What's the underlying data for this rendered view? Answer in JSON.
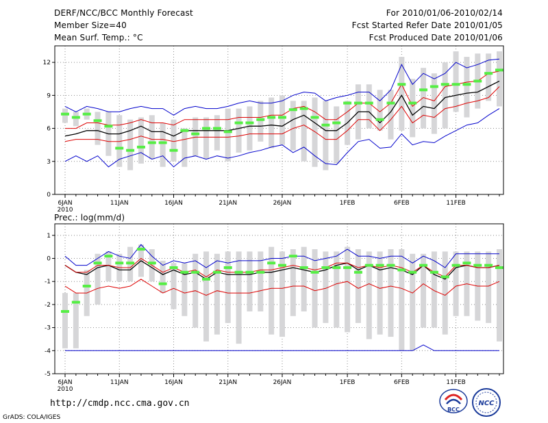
{
  "header": {
    "title": "DERF/NCC/BCC Monthly Forecast",
    "member": "Member Size=40",
    "variable": "Mean Surf. Temp.: °C",
    "period": "For 2010/01/06-2010/02/14",
    "started": "Fcst Started Refer Date 2010/01/05",
    "produced": "Fcst Produced Date 2010/01/06"
  },
  "footer": {
    "url": "http://cmdp.ncc.cma.gov.cn",
    "grads": "GrADS: COLA/IGES",
    "logo_left_text": "BCC",
    "logo_right_text": "NCC"
  },
  "colors": {
    "box": "#d6d6d8",
    "median": "#55ee44",
    "mean": "#000000",
    "std": "#dd0000",
    "range": "#0000cc",
    "grid": "#888888"
  },
  "chart_data": [
    {
      "type": "line",
      "title": "Mean Surf. Temp.: °C",
      "ylim": [
        0,
        13.5
      ],
      "yticks": [
        0,
        3,
        6,
        9,
        12
      ],
      "x_ticks": [
        {
          "i": 0,
          "label": "6JAN",
          "sub": "2010"
        },
        {
          "i": 5,
          "label": "11JAN"
        },
        {
          "i": 10,
          "label": "16JAN"
        },
        {
          "i": 15,
          "label": "21JAN"
        },
        {
          "i": 20,
          "label": "26JAN"
        },
        {
          "i": 26,
          "label": "1FEB"
        },
        {
          "i": 31,
          "label": "6FEB"
        },
        {
          "i": 36,
          "label": "11FEB"
        }
      ],
      "box_low": [
        6.5,
        6.2,
        6.8,
        4.5,
        3.5,
        2.5,
        2.2,
        2.8,
        3.2,
        2.5,
        3.0,
        2.5,
        3.5,
        3.2,
        4.0,
        3.0,
        3.8,
        4.0,
        4.8,
        4.2,
        4.5,
        4.0,
        3.0,
        2.5,
        2.2,
        2.8,
        4.5,
        5.0,
        6.0,
        5.8,
        5.0,
        5.8,
        5.2,
        6.0,
        5.5,
        6.0,
        7.5,
        7.0,
        7.8,
        8.5,
        8.0
      ],
      "box_high": [
        7.8,
        7.5,
        7.8,
        7.5,
        7.5,
        7.2,
        6.8,
        7.0,
        7.2,
        6.5,
        6.8,
        6.0,
        7.0,
        7.0,
        7.2,
        7.8,
        7.8,
        8.0,
        8.5,
        8.8,
        9.0,
        8.5,
        8.5,
        8.8,
        8.5,
        8.0,
        8.5,
        10.0,
        10.0,
        9.5,
        9.5,
        12.5,
        10.5,
        11.5,
        11.0,
        12.0,
        13.0,
        12.5,
        12.8,
        12.8,
        13.0
      ],
      "median": [
        7.3,
        7.0,
        7.3,
        6.7,
        6.2,
        4.2,
        4.0,
        4.3,
        4.7,
        4.7,
        4.0,
        5.8,
        5.5,
        6.0,
        6.0,
        5.7,
        6.5,
        6.5,
        6.8,
        7.0,
        7.0,
        7.7,
        7.8,
        7.0,
        6.3,
        6.5,
        8.3,
        8.3,
        8.3,
        6.8,
        8.3,
        10.0,
        8.3,
        9.5,
        9.8,
        10.0,
        10.0,
        10.0,
        10.3,
        11.0,
        11.3
      ],
      "series": [
        {
          "name": "mean",
          "values": [
            5.3,
            5.5,
            5.8,
            5.8,
            5.5,
            5.5,
            5.8,
            6.2,
            5.7,
            5.7,
            5.3,
            5.8,
            5.8,
            5.8,
            5.8,
            5.8,
            6.0,
            6.2,
            6.2,
            6.3,
            6.2,
            6.8,
            7.2,
            6.5,
            5.8,
            5.8,
            6.5,
            7.5,
            7.5,
            6.5,
            7.5,
            9.0,
            7.2,
            8.0,
            7.8,
            8.8,
            9.0,
            9.2,
            9.3,
            9.8,
            10.3
          ]
        },
        {
          "name": "std_upper",
          "values": [
            6.0,
            6.0,
            6.5,
            6.5,
            6.3,
            6.3,
            6.5,
            6.8,
            6.5,
            6.5,
            6.3,
            6.8,
            6.8,
            6.8,
            6.8,
            6.8,
            7.0,
            7.0,
            7.0,
            7.2,
            7.2,
            7.8,
            8.0,
            7.5,
            6.8,
            6.8,
            7.5,
            8.3,
            8.3,
            7.5,
            8.3,
            10.0,
            8.0,
            8.8,
            8.5,
            9.8,
            10.0,
            10.2,
            10.3,
            11.0,
            11.2
          ]
        },
        {
          "name": "std_lower",
          "values": [
            4.8,
            5.0,
            5.0,
            5.0,
            4.8,
            4.8,
            5.0,
            5.3,
            5.0,
            5.0,
            4.8,
            5.0,
            5.2,
            5.2,
            5.2,
            5.2,
            5.3,
            5.5,
            5.5,
            5.5,
            5.5,
            6.0,
            6.3,
            5.7,
            5.0,
            5.0,
            5.8,
            6.8,
            6.8,
            5.8,
            6.8,
            8.0,
            6.5,
            7.2,
            7.0,
            7.8,
            8.0,
            8.3,
            8.5,
            8.8,
            9.8
          ]
        },
        {
          "name": "max",
          "values": [
            8.0,
            7.5,
            8.0,
            7.8,
            7.5,
            7.5,
            7.8,
            8.0,
            7.8,
            7.8,
            7.2,
            7.8,
            8.0,
            7.8,
            7.8,
            8.0,
            8.3,
            8.5,
            8.3,
            8.3,
            8.5,
            9.0,
            9.3,
            9.2,
            8.5,
            8.8,
            9.0,
            9.3,
            9.3,
            8.5,
            9.5,
            11.8,
            10.0,
            11.0,
            10.5,
            11.0,
            12.0,
            11.5,
            11.8,
            12.2,
            12.3
          ]
        },
        {
          "name": "min",
          "values": [
            3.0,
            3.5,
            3.0,
            3.5,
            2.5,
            3.2,
            3.5,
            3.8,
            3.2,
            3.5,
            2.5,
            3.3,
            3.5,
            3.2,
            3.5,
            3.3,
            3.5,
            3.8,
            4.0,
            4.3,
            4.5,
            3.8,
            4.3,
            3.5,
            2.8,
            2.7,
            3.8,
            4.8,
            5.0,
            4.2,
            4.3,
            5.5,
            4.5,
            4.8,
            4.7,
            5.3,
            5.8,
            6.3,
            6.5,
            7.2,
            7.8
          ]
        }
      ]
    },
    {
      "type": "line",
      "title": "Prec.: log(mm/d)",
      "ylim": [
        -5,
        1.5
      ],
      "yticks": [
        1,
        0,
        -1,
        -2,
        -3,
        -4,
        -5
      ],
      "x_ticks": [
        {
          "i": 0,
          "label": "6JAN",
          "sub": "2010"
        },
        {
          "i": 5,
          "label": "11JAN"
        },
        {
          "i": 10,
          "label": "16JAN"
        },
        {
          "i": 15,
          "label": "21JAN"
        },
        {
          "i": 20,
          "label": "26JAN"
        },
        {
          "i": 26,
          "label": "1FEB"
        },
        {
          "i": 31,
          "label": "6FEB"
        },
        {
          "i": 36,
          "label": "11FEB"
        }
      ],
      "box_low": [
        -3.9,
        -3.9,
        -2.5,
        -2.0,
        -1.0,
        -1.0,
        -1.0,
        -0.8,
        -1.0,
        -1.5,
        -2.2,
        -2.5,
        -3.0,
        -3.6,
        -3.3,
        -2.8,
        -3.7,
        -2.3,
        -2.3,
        -3.3,
        -3.4,
        -2.5,
        -2.3,
        -3.0,
        -2.8,
        -3.0,
        -3.2,
        -2.8,
        -3.5,
        -3.3,
        -3.4,
        -4.0,
        -4.0,
        -3.0,
        -3.0,
        -3.3,
        -2.5,
        -2.5,
        -2.7,
        -2.8,
        -3.6
      ],
      "box_high": [
        -1.5,
        -1.5,
        -0.5,
        0.2,
        0.3,
        0.2,
        0.5,
        0.6,
        0.4,
        -0.1,
        -0.2,
        -0.2,
        0.2,
        0.3,
        0.2,
        0.3,
        0.3,
        0.3,
        0.3,
        0.5,
        0.3,
        0.4,
        0.5,
        0.4,
        0.3,
        0.3,
        0.5,
        0.4,
        0.3,
        0.3,
        0.4,
        0.4,
        0.2,
        0.2,
        0.3,
        0.3,
        0.3,
        0.3,
        0.3,
        0.3,
        0.4
      ],
      "median": [
        -2.3,
        -1.9,
        -1.2,
        -0.2,
        0.1,
        -0.2,
        -0.2,
        0.4,
        -0.2,
        -1.1,
        -0.4,
        -0.6,
        -0.6,
        -0.9,
        -0.6,
        -0.4,
        -0.6,
        -0.6,
        -0.6,
        -0.2,
        -0.3,
        0.1,
        -0.4,
        -0.6,
        -0.4,
        -0.4,
        -0.4,
        -0.6,
        -0.3,
        -0.3,
        -0.3,
        -0.5,
        -0.6,
        -0.3,
        -0.6,
        -0.8,
        -0.3,
        -0.2,
        -0.3,
        -0.3,
        -0.4
      ],
      "series": [
        {
          "name": "mean",
          "values": [
            -0.3,
            -0.6,
            -0.7,
            -0.4,
            -0.3,
            -0.5,
            -0.5,
            -0.1,
            -0.4,
            -0.7,
            -0.5,
            -0.7,
            -0.6,
            -0.9,
            -0.6,
            -0.7,
            -0.7,
            -0.7,
            -0.6,
            -0.6,
            -0.5,
            -0.4,
            -0.5,
            -0.6,
            -0.5,
            -0.3,
            -0.2,
            -0.5,
            -0.3,
            -0.5,
            -0.4,
            -0.5,
            -0.7,
            -0.3,
            -0.7,
            -0.9,
            -0.4,
            -0.3,
            -0.4,
            -0.4,
            -0.3
          ]
        },
        {
          "name": "std_upper",
          "values": [
            -0.3,
            -0.6,
            -0.6,
            -0.3,
            -0.3,
            -0.4,
            -0.4,
            0.0,
            -0.3,
            -0.6,
            -0.4,
            -0.6,
            -0.5,
            -0.8,
            -0.5,
            -0.6,
            -0.6,
            -0.6,
            -0.5,
            -0.5,
            -0.4,
            -0.3,
            -0.4,
            -0.5,
            -0.4,
            -0.2,
            -0.2,
            -0.4,
            -0.3,
            -0.4,
            -0.3,
            -0.4,
            -0.6,
            -0.3,
            -0.6,
            -0.8,
            -0.3,
            -0.3,
            -0.4,
            -0.4,
            -0.3
          ]
        },
        {
          "name": "std_lower",
          "values": [
            -1.2,
            -1.5,
            -1.5,
            -1.3,
            -1.2,
            -1.3,
            -1.2,
            -0.9,
            -1.2,
            -1.5,
            -1.3,
            -1.5,
            -1.4,
            -1.6,
            -1.4,
            -1.5,
            -1.5,
            -1.5,
            -1.4,
            -1.3,
            -1.3,
            -1.2,
            -1.2,
            -1.4,
            -1.3,
            -1.1,
            -1.0,
            -1.3,
            -1.1,
            -1.3,
            -1.2,
            -1.3,
            -1.5,
            -1.1,
            -1.4,
            -1.6,
            -1.2,
            -1.1,
            -1.2,
            -1.2,
            -1.0
          ]
        },
        {
          "name": "max",
          "values": [
            0.1,
            -0.3,
            -0.3,
            0.0,
            0.3,
            0.1,
            0.0,
            0.6,
            0.1,
            -0.3,
            -0.1,
            -0.2,
            -0.1,
            -0.4,
            -0.1,
            -0.2,
            -0.1,
            -0.1,
            -0.1,
            0.0,
            0.0,
            0.1,
            0.1,
            -0.1,
            0.0,
            0.1,
            0.4,
            0.1,
            0.1,
            0.0,
            0.1,
            0.1,
            -0.2,
            0.1,
            -0.1,
            -0.4,
            0.2,
            0.2,
            0.2,
            0.2,
            0.2
          ]
        },
        {
          "name": "min",
          "values": [
            -4.0,
            -4.0,
            -4.0,
            -4.0,
            -4.0,
            -4.0,
            -4.0,
            -4.0,
            -4.0,
            -4.0,
            -4.0,
            -4.0,
            -4.0,
            -4.0,
            -4.0,
            -4.0,
            -4.0,
            -4.0,
            -4.0,
            -4.0,
            -4.0,
            -4.0,
            -4.0,
            -4.0,
            -4.0,
            -4.0,
            -4.0,
            -4.0,
            -4.0,
            -4.0,
            -4.0,
            -4.0,
            -4.0,
            -3.75,
            -4.0,
            -4.0,
            -4.0,
            -4.0,
            -4.0,
            -4.0,
            -4.0
          ]
        }
      ]
    }
  ]
}
